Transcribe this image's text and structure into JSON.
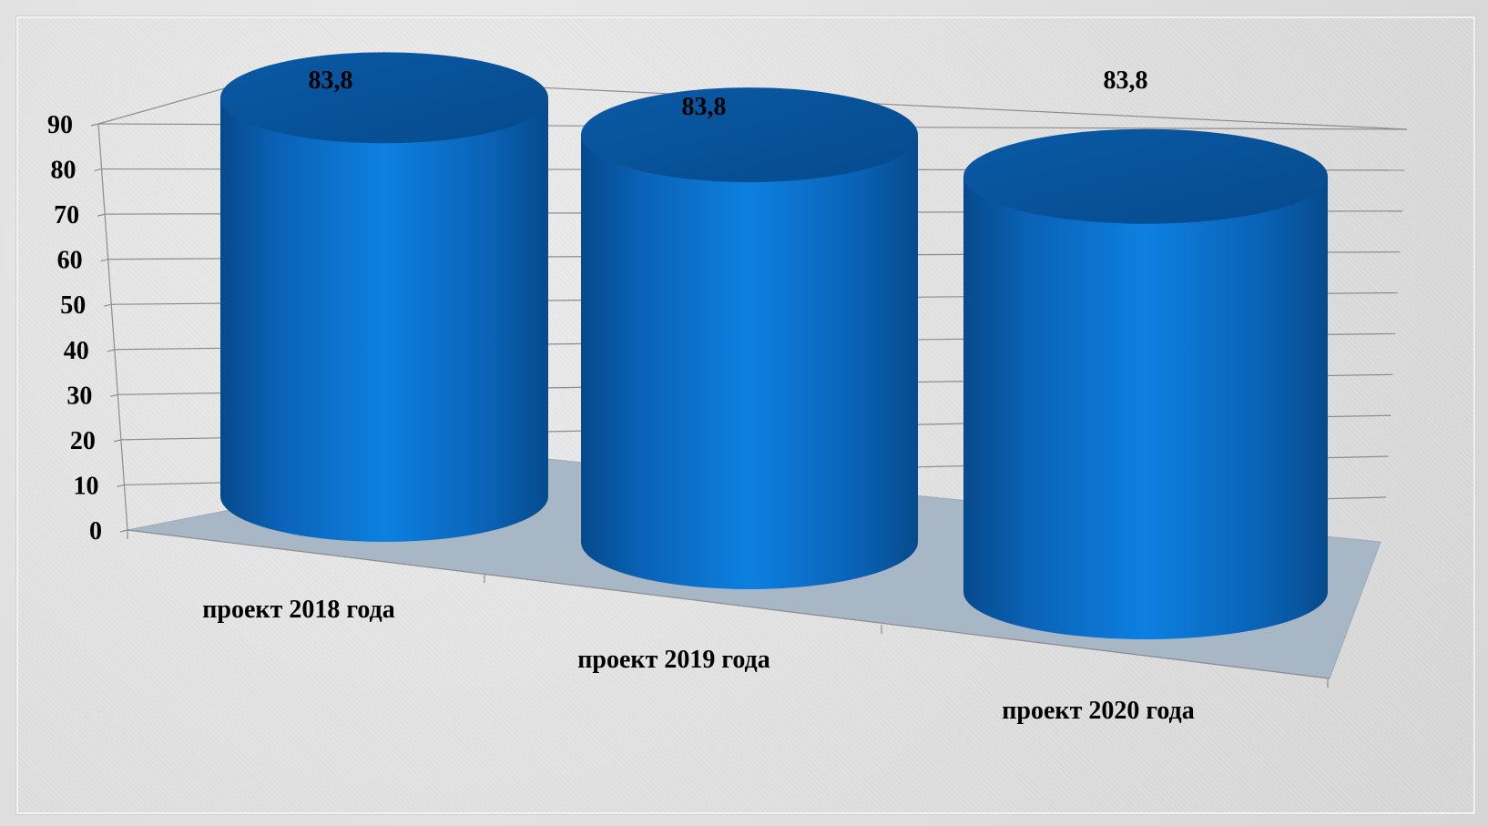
{
  "chart_data": {
    "type": "bar",
    "style": "3d-cylinder",
    "categories": [
      "проект 2018 года",
      "проект 2019 года",
      "проект 2020 года"
    ],
    "values": [
      83.8,
      83.8,
      83.8
    ],
    "data_labels": [
      "83,8",
      "83,8",
      "83,8"
    ],
    "ylim": [
      0,
      90
    ],
    "yticks": [
      "0",
      "10",
      "20",
      "30",
      "40",
      "50",
      "60",
      "70",
      "80",
      "90"
    ],
    "grid": true,
    "legend": false,
    "colors": {
      "bar": "#0a6fc9",
      "bar_dark": "#064a8c",
      "floor": "#a7b7c6",
      "grid": "#8c8c8c"
    }
  }
}
